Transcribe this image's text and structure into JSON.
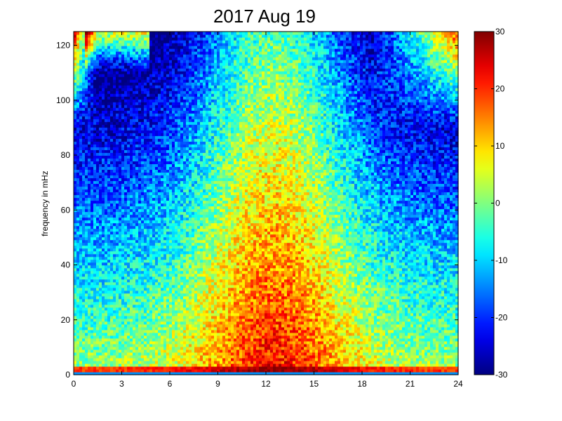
{
  "chart_data": {
    "type": "heatmap",
    "title": "2017 Aug 19",
    "xlabel": "",
    "ylabel": "frequency in mHz",
    "x_ticks": [
      0,
      3,
      6,
      9,
      12,
      15,
      18,
      21,
      24
    ],
    "y_ticks": [
      0,
      20,
      40,
      60,
      80,
      100,
      120
    ],
    "xlim": [
      0,
      24
    ],
    "ylim": [
      0,
      125
    ],
    "colorbar": {
      "colormap": "jet",
      "range": [
        -30,
        30
      ],
      "ticks": [
        -30,
        -20,
        -10,
        0,
        10,
        20,
        30
      ]
    },
    "grid": false
  }
}
